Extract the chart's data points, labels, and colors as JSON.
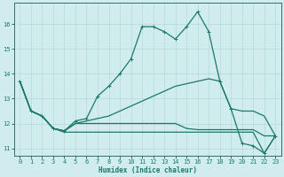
{
  "xlabel": "Humidex (Indice chaleur)",
  "bg_color": "#d0ecec",
  "grid_color": "#b8d8d8",
  "line_color": "#1a7a6a",
  "spine_color": "#3a6a6a",
  "tick_color": "#1a5a5a",
  "xlim": [
    -0.5,
    23.5
  ],
  "ylim": [
    10.7,
    16.85
  ],
  "yticks": [
    11,
    12,
    13,
    14,
    15,
    16
  ],
  "xticks": [
    0,
    1,
    2,
    3,
    4,
    5,
    6,
    7,
    8,
    9,
    10,
    11,
    12,
    13,
    14,
    15,
    16,
    17,
    18,
    19,
    20,
    21,
    22,
    23
  ],
  "curve_main_y": [
    13.7,
    12.5,
    12.3,
    11.8,
    11.7,
    12.1,
    12.2,
    13.1,
    13.5,
    14.0,
    14.6,
    15.9,
    15.9,
    15.7,
    15.4,
    15.9,
    16.5,
    15.7,
    13.7,
    12.6,
    11.2,
    11.1,
    10.8,
    11.5
  ],
  "curve2_y": [
    13.7,
    12.5,
    12.3,
    11.8,
    11.7,
    12.0,
    12.1,
    12.2,
    12.3,
    12.5,
    12.7,
    12.9,
    13.1,
    13.3,
    13.5,
    13.6,
    13.7,
    13.8,
    13.7,
    12.6,
    12.5,
    12.5,
    12.3,
    11.5
  ],
  "curve3_y": [
    13.7,
    12.5,
    12.3,
    11.8,
    11.7,
    12.0,
    12.0,
    12.0,
    12.0,
    12.0,
    12.0,
    12.0,
    12.0,
    12.0,
    12.0,
    11.8,
    11.75,
    11.75,
    11.75,
    11.75,
    11.75,
    11.75,
    11.5,
    11.5
  ],
  "curve4_y": [
    13.7,
    12.5,
    12.3,
    11.8,
    11.65,
    11.65,
    11.65,
    11.65,
    11.65,
    11.65,
    11.65,
    11.65,
    11.65,
    11.65,
    11.65,
    11.65,
    11.65,
    11.65,
    11.65,
    11.65,
    11.65,
    11.65,
    10.8,
    11.5
  ]
}
